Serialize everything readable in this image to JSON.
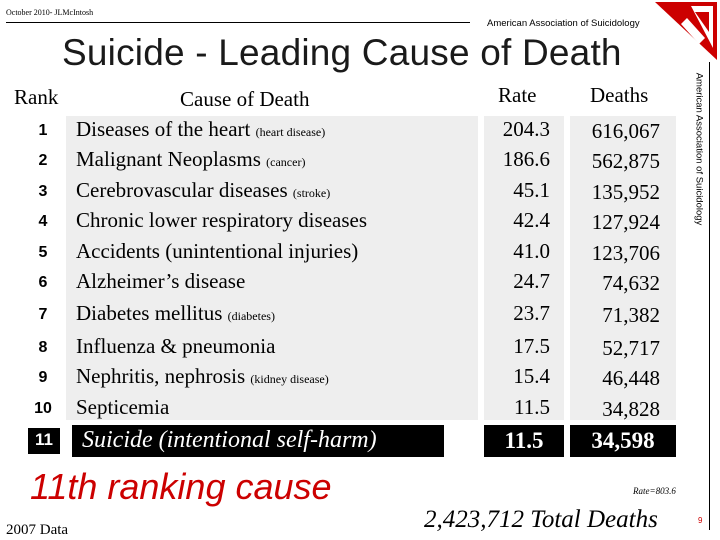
{
  "header": {
    "date_author": "October 2010- JLMcIntosh",
    "organization": "American Association of Suicidology",
    "side_organization": "American Association of Suicidology"
  },
  "title": "Suicide - Leading Cause of Death",
  "columns": {
    "rank": "Rank",
    "cause": "Cause of Death",
    "rate": "Rate",
    "deaths": "Deaths"
  },
  "rows": [
    {
      "rank": "1",
      "cause": "Diseases of the heart",
      "note": "(heart disease)",
      "rate": "204.3",
      "deaths": "616,067"
    },
    {
      "rank": "2",
      "cause": "Malignant Neoplasms",
      "note": "(cancer)",
      "rate": "186.6",
      "deaths": "562,875"
    },
    {
      "rank": "3",
      "cause": "Cerebrovascular diseases",
      "note": "(stroke)",
      "rate": "45.1",
      "deaths": "135,952"
    },
    {
      "rank": "4",
      "cause": "Chronic  lower respiratory diseases",
      "note": "",
      "rate": "42.4",
      "deaths": "127,924"
    },
    {
      "rank": "5",
      "cause": "Accidents (unintentional injuries)",
      "note": "",
      "rate": "41.0",
      "deaths": "123,706"
    },
    {
      "rank": "6",
      "cause": "Alzheimer’s disease",
      "note": "",
      "rate": "24.7",
      "deaths": "74,632"
    },
    {
      "rank": "7",
      "cause": "Diabetes mellitus",
      "note": "(diabetes)",
      "rate": "23.7",
      "deaths": "71,382"
    },
    {
      "rank": "8",
      "cause": "Influenza & pneumonia",
      "note": "",
      "rate": "17.5",
      "deaths": "52,717"
    },
    {
      "rank": "9",
      "cause": "Nephritis, nephrosis",
      "note": "(kidney disease)",
      "rate": "15.4",
      "deaths": "46,448"
    },
    {
      "rank": "10",
      "cause": "Septicemia",
      "note": "",
      "rate": "11.5",
      "deaths": "34,828"
    }
  ],
  "highlight": {
    "rank": "11",
    "cause": "Suicide (intentional self-harm)",
    "rate": "11.5",
    "deaths": "34,598"
  },
  "callout": "11th ranking cause",
  "year_note": "2007 Data",
  "total_rate": "Rate=803.6",
  "total_deaths": "2,423,712 Total Deaths",
  "page_number": "9",
  "colors": {
    "accent_red": "#cc0000",
    "column_background": "#eeeeee",
    "highlight_background": "#000000"
  }
}
